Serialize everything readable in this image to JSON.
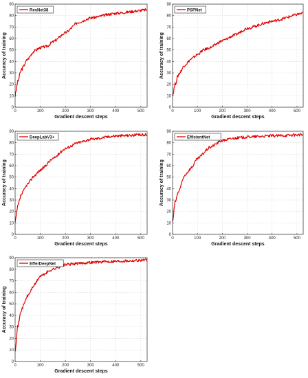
{
  "chart_data": [
    {
      "type": "line",
      "xlabel": "Gradient descent steps",
      "ylabel": "Accuracy of training",
      "xlim": [
        0,
        525
      ],
      "ylim": [
        0,
        90
      ],
      "xticks": [
        0,
        100,
        200,
        300,
        400,
        500
      ],
      "yticks": [
        0,
        10,
        20,
        30,
        40,
        50,
        60,
        70,
        80,
        90
      ],
      "grid": true,
      "legend": "top-left",
      "series": [
        {
          "name": "ResNet38",
          "color": "#e00000",
          "x": [
            0,
            10,
            25,
            50,
            75,
            100,
            125,
            150,
            200,
            250,
            300,
            400,
            525
          ],
          "y": [
            10,
            22,
            33,
            42,
            49,
            52,
            53,
            57,
            65,
            74,
            78,
            82,
            85
          ]
        }
      ]
    },
    {
      "type": "line",
      "xlabel": "Gradient descent steps",
      "ylabel": "Accuracy of training",
      "xlim": [
        0,
        525
      ],
      "ylim": [
        0,
        90
      ],
      "xticks": [
        0,
        100,
        200,
        300,
        400,
        500
      ],
      "yticks": [
        0,
        10,
        20,
        30,
        40,
        50,
        60,
        70,
        80,
        90
      ],
      "grid": true,
      "legend": "top-left",
      "series": [
        {
          "name": "PSPNet",
          "color": "#e00000",
          "x": [
            0,
            10,
            25,
            50,
            75,
            100,
            125,
            150,
            200,
            250,
            300,
            400,
            525
          ],
          "y": [
            10,
            20,
            29,
            37,
            42,
            46,
            50,
            52,
            58,
            63,
            69,
            75,
            82
          ]
        }
      ]
    },
    {
      "type": "line",
      "xlabel": "Gradient descent steps",
      "ylabel": "Accuracy of training",
      "xlim": [
        0,
        525
      ],
      "ylim": [
        0,
        90
      ],
      "xticks": [
        0,
        100,
        200,
        300,
        400,
        500
      ],
      "yticks": [
        0,
        10,
        20,
        30,
        40,
        50,
        60,
        70,
        80,
        90
      ],
      "grid": true,
      "legend": "top-left",
      "series": [
        {
          "name": "DeepLabV3+",
          "color": "#e00000",
          "x": [
            0,
            10,
            25,
            50,
            75,
            100,
            150,
            200,
            250,
            300,
            400,
            525
          ],
          "y": [
            10,
            24,
            35,
            44,
            51,
            56,
            66,
            75,
            80,
            83,
            86,
            87
          ]
        }
      ]
    },
    {
      "type": "line",
      "xlabel": "Gradient descent steps",
      "ylabel": "Accuracy of training",
      "xlim": [
        0,
        525
      ],
      "ylim": [
        0,
        90
      ],
      "xticks": [
        0,
        100,
        200,
        300,
        400,
        500
      ],
      "yticks": [
        0,
        10,
        20,
        30,
        40,
        50,
        60,
        70,
        80,
        90
      ],
      "grid": true,
      "legend": "top-left",
      "series": [
        {
          "name": "EfficientNet",
          "color": "#e00000",
          "x": [
            0,
            10,
            25,
            50,
            75,
            100,
            150,
            200,
            250,
            300,
            400,
            525
          ],
          "y": [
            10,
            28,
            38,
            52,
            58,
            66,
            76,
            82,
            84,
            85,
            86,
            87
          ]
        }
      ]
    },
    {
      "type": "line",
      "xlabel": "Gradient descent steps",
      "ylabel": "Accuracy of training",
      "xlim": [
        0,
        525
      ],
      "ylim": [
        0,
        90
      ],
      "xticks": [
        0,
        100,
        200,
        300,
        400,
        500
      ],
      "yticks": [
        0,
        10,
        20,
        30,
        40,
        50,
        60,
        70,
        80,
        90
      ],
      "grid": true,
      "legend": "top-left",
      "series": [
        {
          "name": "EfferDeepNet",
          "color": "#e00000",
          "x": [
            0,
            10,
            25,
            50,
            75,
            100,
            150,
            200,
            250,
            300,
            400,
            525
          ],
          "y": [
            10,
            30,
            45,
            57,
            66,
            74,
            80,
            84,
            85,
            86,
            87,
            88
          ]
        }
      ]
    }
  ]
}
